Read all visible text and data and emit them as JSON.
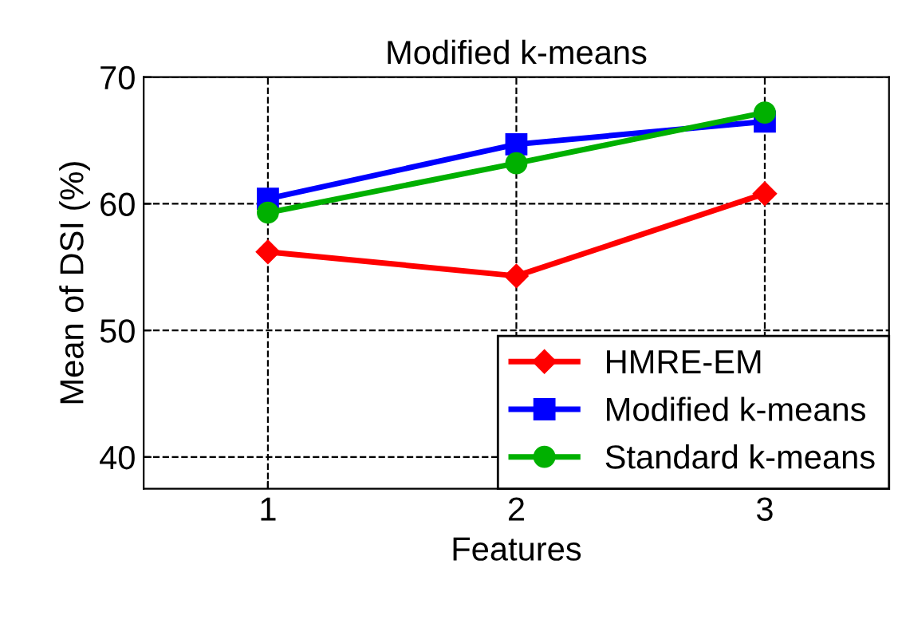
{
  "chart_data": {
    "type": "line",
    "title": "Modified k-means",
    "xlabel": "Features",
    "ylabel": "Mean of DSI (%)",
    "x": [
      1,
      2,
      3
    ],
    "series": [
      {
        "name": "HMRE-EM",
        "color": "#ff0000",
        "marker": "diamond",
        "values": [
          56.2,
          54.3,
          60.8
        ]
      },
      {
        "name": "Modified k-means",
        "color": "#0000ff",
        "marker": "square",
        "values": [
          60.4,
          64.7,
          66.5
        ]
      },
      {
        "name": "Standard k-means",
        "color": "#00b000",
        "marker": "circle",
        "values": [
          59.3,
          63.2,
          67.2
        ]
      }
    ],
    "xlim": [
      0.5,
      3.5
    ],
    "ylim": [
      37.5,
      70
    ],
    "xticks": [
      1,
      2,
      3
    ],
    "yticks": [
      40,
      50,
      60,
      70
    ],
    "grid": true,
    "legend": "bottom right",
    "line_style": "solid"
  }
}
